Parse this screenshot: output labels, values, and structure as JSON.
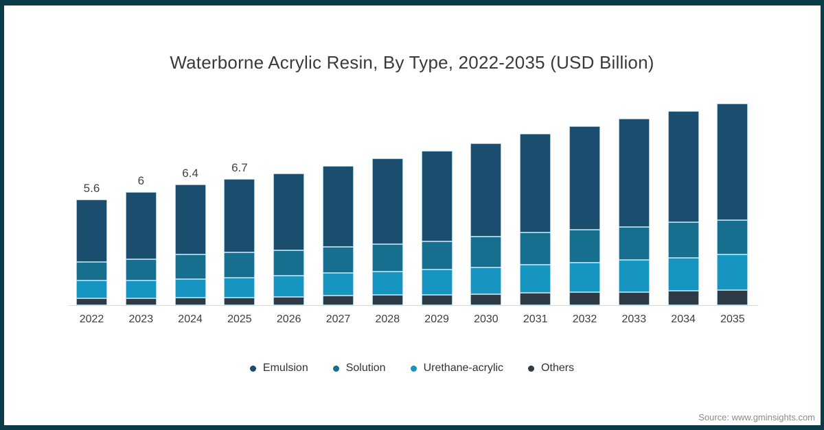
{
  "title": "Waterborne Acrylic Resin, By Type, 2022-2035 (USD Billion)",
  "source": "Source: www.gminsights.com",
  "frame": {
    "border_color": "#093b49"
  },
  "chart_data": {
    "type": "bar",
    "stacked": true,
    "title": "Waterborne Acrylic Resin, By Type, 2022-2035 (USD Billion)",
    "xlabel": "",
    "ylabel": "",
    "ylim": [
      0,
      11
    ],
    "grid": false,
    "legend_position": "bottom",
    "categories": [
      "2022",
      "2023",
      "2024",
      "2025",
      "2026",
      "2027",
      "2028",
      "2029",
      "2030",
      "2031",
      "2032",
      "2033",
      "2034",
      "2035"
    ],
    "series": [
      {
        "name": "Emulsion",
        "color": "#1b4d6e",
        "values": [
          3.3,
          3.55,
          3.7,
          3.9,
          4.1,
          4.3,
          4.55,
          4.8,
          4.95,
          5.25,
          5.5,
          5.75,
          5.9,
          6.2
        ]
      },
      {
        "name": "Solution",
        "color": "#166f8f",
        "values": [
          1.0,
          1.15,
          1.3,
          1.35,
          1.35,
          1.4,
          1.45,
          1.5,
          1.65,
          1.7,
          1.75,
          1.75,
          1.9,
          1.8
        ]
      },
      {
        "name": "Urethane-acrylic",
        "color": "#1795c1",
        "values": [
          0.95,
          0.95,
          1.0,
          1.05,
          1.1,
          1.2,
          1.25,
          1.35,
          1.4,
          1.5,
          1.55,
          1.7,
          1.75,
          1.9
        ]
      },
      {
        "name": "Others",
        "color": "#2e3a46",
        "values": [
          0.35,
          0.35,
          0.4,
          0.4,
          0.45,
          0.5,
          0.55,
          0.55,
          0.6,
          0.65,
          0.7,
          0.7,
          0.75,
          0.8
        ]
      }
    ],
    "totals": [
      5.6,
      6.0,
      6.4,
      6.7,
      7.0,
      7.4,
      7.8,
      8.2,
      8.6,
      9.1,
      9.5,
      9.9,
      10.3,
      10.7
    ],
    "bar_labels": [
      "5.6",
      "6",
      "6.4",
      "6.7",
      "",
      "",
      "",
      "",
      "",
      "",
      "",
      "",
      "",
      ""
    ]
  }
}
